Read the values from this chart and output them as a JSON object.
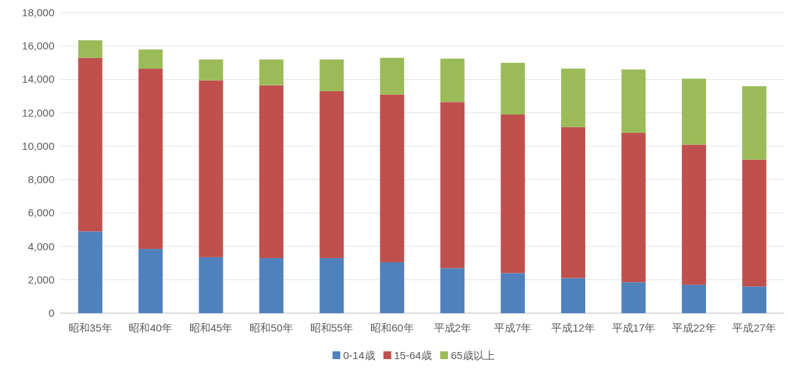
{
  "chart_data": {
    "type": "bar",
    "stacked": true,
    "grid": "y",
    "legend": "bottom",
    "categories": [
      "昭和35年",
      "昭和40年",
      "昭和45年",
      "昭和50年",
      "昭和55年",
      "昭和60年",
      "平成2年",
      "平成7年",
      "平成12年",
      "平成17年",
      "平成22年",
      "平成27年"
    ],
    "series": [
      {
        "name": "0-14歳",
        "color": "#4f81bd",
        "values": [
          4900,
          3850,
          3350,
          3300,
          3300,
          3050,
          2700,
          2400,
          2100,
          1850,
          1700,
          1600
        ]
      },
      {
        "name": "15-64歳",
        "color": "#c0504d",
        "values": [
          10400,
          10800,
          10600,
          10350,
          10000,
          10050,
          9950,
          9500,
          9050,
          8950,
          8400,
          7600
        ]
      },
      {
        "name": "65歳以上",
        "color": "#9bbb59",
        "values": [
          1050,
          1150,
          1250,
          1550,
          1900,
          2200,
          2600,
          3100,
          3500,
          3800,
          3950,
          4400
        ]
      }
    ],
    "ylim": [
      0,
      18000
    ],
    "yticks": [
      0,
      {
        "value": 2000,
        "label": "2,000"
      },
      {
        "value": 4000,
        "label": "4,000"
      },
      {
        "value": 6000,
        "label": "6,000"
      },
      {
        "value": 8000,
        "label": "8,000"
      },
      {
        "value": 10000,
        "label": "10,000"
      },
      {
        "value": 12000,
        "label": "12,000"
      },
      {
        "value": 14000,
        "label": "14,000"
      },
      {
        "value": 16000,
        "label": "16,000"
      },
      {
        "value": 18000,
        "label": "18,000"
      }
    ]
  }
}
